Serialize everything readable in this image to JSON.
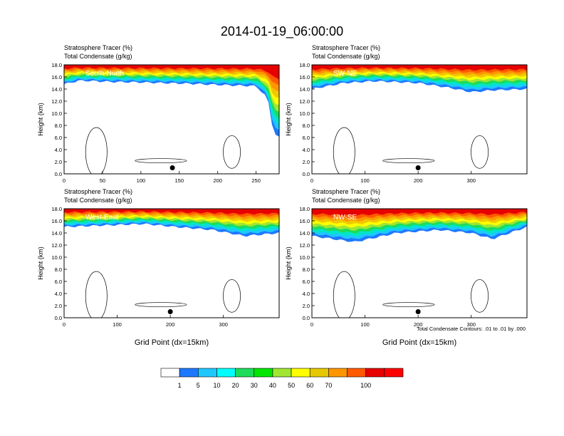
{
  "page_title": "2014-01-19_06:00:00",
  "footnote": "Total Condensate Contours: .01 to .01 by .000",
  "contour_label": "0.01",
  "colorbar": {
    "colors": [
      "#ffffff",
      "#1e78ff",
      "#1ec8ff",
      "#00ffff",
      "#1edc5a",
      "#00e600",
      "#a0e632",
      "#ffff00",
      "#e6c800",
      "#ff9600",
      "#ff5a00",
      "#e60000",
      "#ff0000"
    ],
    "labels": [
      "1",
      "5",
      "10",
      "20",
      "30",
      "40",
      "50",
      "60",
      "70",
      "100"
    ]
  },
  "chart_data": [
    {
      "type": "heatmap",
      "name": "South-North",
      "var_title_1": "Stratosphere Tracer   (%)",
      "var_title_2": "Total Condensate   (g/kg)",
      "ylabel": "Height (km)",
      "xlabel": "",
      "xlim": [
        0,
        280
      ],
      "ylim": [
        0,
        18
      ],
      "xticks": [
        0,
        50,
        100,
        150,
        200,
        250
      ],
      "yticks": [
        "0.0",
        "2.0",
        "4.0",
        "6.0",
        "8.0",
        "10.0",
        "12.0",
        "14.0",
        "16.0",
        "18.0"
      ],
      "tracer_base_km": [
        [
          0,
          14.8
        ],
        [
          20,
          15.4
        ],
        [
          60,
          15.2
        ],
        [
          100,
          15.1
        ],
        [
          160,
          14.9
        ],
        [
          220,
          14.6
        ],
        [
          250,
          14.5
        ],
        [
          265,
          12.5
        ],
        [
          270,
          9.0
        ],
        [
          272,
          6.8
        ],
        [
          280,
          6.0
        ]
      ],
      "dot": {
        "x": 141,
        "y": 1.0
      }
    },
    {
      "type": "heatmap",
      "name": "SW-NE",
      "var_title_1": "Stratosphere Tracer   (%)",
      "var_title_2": "Total Condensate   (g/kg)",
      "ylabel": "Height (km)",
      "xlabel": "",
      "xlim": [
        0,
        405
      ],
      "ylim": [
        0,
        18
      ],
      "xticks": [
        0,
        100,
        200,
        300
      ],
      "yticks": [
        "0.0",
        "2.0",
        "4.0",
        "6.0",
        "8.0",
        "10.0",
        "12.0",
        "14.0",
        "16.0",
        "18.0"
      ],
      "tracer_base_km": [
        [
          0,
          14.0
        ],
        [
          60,
          15.0
        ],
        [
          120,
          15.3
        ],
        [
          200,
          15.0
        ],
        [
          260,
          14.2
        ],
        [
          300,
          13.5
        ],
        [
          340,
          13.8
        ],
        [
          405,
          14.0
        ]
      ],
      "dot": {
        "x": 200,
        "y": 1.0
      }
    },
    {
      "type": "heatmap",
      "name": "West-East",
      "var_title_1": "Stratosphere Tracer   (%)",
      "var_title_2": "Total Condensate   (g/kg)",
      "ylabel": "Height (km)",
      "xlabel": "Grid Point (dx=15km)",
      "xlim": [
        0,
        405
      ],
      "ylim": [
        0,
        18
      ],
      "xticks": [
        0,
        100,
        200,
        300
      ],
      "yticks": [
        "0.0",
        "2.0",
        "4.0",
        "6.0",
        "8.0",
        "10.0",
        "12.0",
        "14.0",
        "16.0",
        "18.0"
      ],
      "tracer_base_km": [
        [
          0,
          15.0
        ],
        [
          60,
          15.2
        ],
        [
          150,
          15.5
        ],
        [
          210,
          15.0
        ],
        [
          280,
          14.5
        ],
        [
          340,
          13.5
        ],
        [
          405,
          14.0
        ]
      ],
      "dot": {
        "x": 200,
        "y": 1.0
      }
    },
    {
      "type": "heatmap",
      "name": "NW-SE",
      "var_title_1": "Stratosphere Tracer   (%)",
      "var_title_2": "Total Condensate   (g/kg)",
      "ylabel": "Height (km)",
      "xlabel": "Grid Point (dx=15km)",
      "xlim": [
        0,
        405
      ],
      "ylim": [
        0,
        18
      ],
      "xticks": [
        0,
        100,
        200,
        300
      ],
      "yticks": [
        "0.0",
        "2.0",
        "4.0",
        "6.0",
        "8.0",
        "10.0",
        "12.0",
        "14.0",
        "16.0",
        "18.0"
      ],
      "tracer_base_km": [
        [
          0,
          13.5
        ],
        [
          80,
          12.5
        ],
        [
          160,
          14.0
        ],
        [
          240,
          14.5
        ],
        [
          300,
          14.0
        ],
        [
          340,
          13.0
        ],
        [
          405,
          15.0
        ]
      ],
      "dot": {
        "x": 200,
        "y": 1.0
      }
    }
  ]
}
